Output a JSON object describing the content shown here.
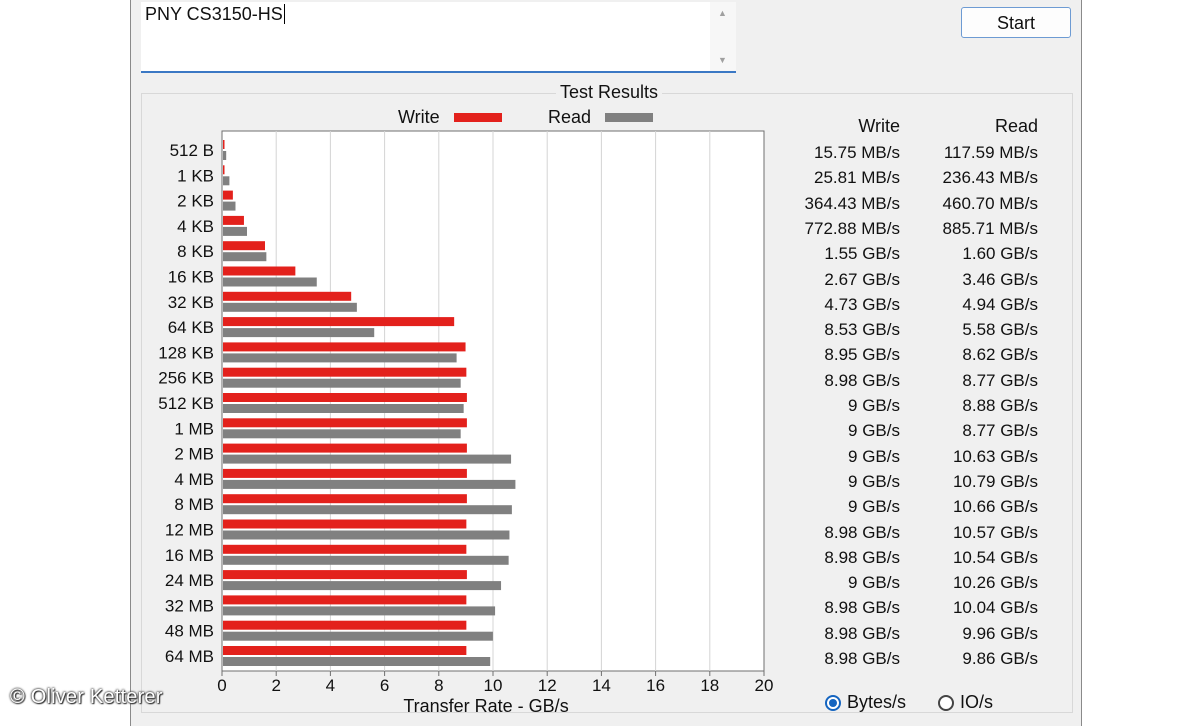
{
  "notes": {
    "text": "PNY CS3150-HS"
  },
  "start_button": {
    "label": "Start"
  },
  "results": {
    "title": "Test Results",
    "legend": {
      "write": "Write",
      "read": "Read"
    },
    "columns": {
      "write": "Write",
      "read": "Read"
    },
    "rows": [
      {
        "size": "512 B",
        "write": "15.75 MB/s",
        "read": "117.59 MB/s"
      },
      {
        "size": "1 KB",
        "write": "25.81 MB/s",
        "read": "236.43 MB/s"
      },
      {
        "size": "2 KB",
        "write": "364.43 MB/s",
        "read": "460.70 MB/s"
      },
      {
        "size": "4 KB",
        "write": "772.88 MB/s",
        "read": "885.71 MB/s"
      },
      {
        "size": "8 KB",
        "write": "1.55 GB/s",
        "read": "1.60 GB/s"
      },
      {
        "size": "16 KB",
        "write": "2.67 GB/s",
        "read": "3.46 GB/s"
      },
      {
        "size": "32 KB",
        "write": "4.73 GB/s",
        "read": "4.94 GB/s"
      },
      {
        "size": "64 KB",
        "write": "8.53 GB/s",
        "read": "5.58 GB/s"
      },
      {
        "size": "128 KB",
        "write": "8.95 GB/s",
        "read": "8.62 GB/s"
      },
      {
        "size": "256 KB",
        "write": "8.98 GB/s",
        "read": "8.77 GB/s"
      },
      {
        "size": "512 KB",
        "write": "9 GB/s",
        "read": "8.88 GB/s"
      },
      {
        "size": "1 MB",
        "write": "9 GB/s",
        "read": "8.77 GB/s"
      },
      {
        "size": "2 MB",
        "write": "9 GB/s",
        "read": "10.63 GB/s"
      },
      {
        "size": "4 MB",
        "write": "9 GB/s",
        "read": "10.79 GB/s"
      },
      {
        "size": "8 MB",
        "write": "9 GB/s",
        "read": "10.66 GB/s"
      },
      {
        "size": "12 MB",
        "write": "8.98 GB/s",
        "read": "10.57 GB/s"
      },
      {
        "size": "16 MB",
        "write": "8.98 GB/s",
        "read": "10.54 GB/s"
      },
      {
        "size": "24 MB",
        "write": "9 GB/s",
        "read": "10.26 GB/s"
      },
      {
        "size": "32 MB",
        "write": "8.98 GB/s",
        "read": "10.04 GB/s"
      },
      {
        "size": "48 MB",
        "write": "8.98 GB/s",
        "read": "9.96 GB/s"
      },
      {
        "size": "64 MB",
        "write": "8.98 GB/s",
        "read": "9.86 GB/s"
      }
    ]
  },
  "units": {
    "bytes_label": "Bytes/s",
    "io_label": "IO/s",
    "selected": "Bytes/s"
  },
  "watermark": "© Oliver Ketterer",
  "colors": {
    "write": "#e3211c",
    "read": "#808080",
    "accent": "#1565c0"
  },
  "chart_data": {
    "type": "bar",
    "orientation": "horizontal",
    "title": "Test Results",
    "xlabel": "Transfer Rate - GB/s",
    "ylabel": "",
    "xlim": [
      0,
      20
    ],
    "xticks": [
      0,
      2,
      4,
      6,
      8,
      10,
      12,
      14,
      16,
      18,
      20
    ],
    "grid": true,
    "legend_position": "top",
    "categories": [
      "512 B",
      "1 KB",
      "2 KB",
      "4 KB",
      "8 KB",
      "16 KB",
      "32 KB",
      "64 KB",
      "128 KB",
      "256 KB",
      "512 KB",
      "1 MB",
      "2 MB",
      "4 MB",
      "8 MB",
      "12 MB",
      "16 MB",
      "24 MB",
      "32 MB",
      "48 MB",
      "64 MB"
    ],
    "series": [
      {
        "name": "Write",
        "values": [
          0.01575,
          0.02581,
          0.36443,
          0.77288,
          1.55,
          2.67,
          4.73,
          8.53,
          8.95,
          8.98,
          9,
          9,
          9,
          9,
          9,
          8.98,
          8.98,
          9,
          8.98,
          8.98,
          8.98
        ]
      },
      {
        "name": "Read",
        "values": [
          0.11759,
          0.23643,
          0.4607,
          0.88571,
          1.6,
          3.46,
          4.94,
          5.58,
          8.62,
          8.77,
          8.88,
          8.77,
          10.63,
          10.79,
          10.66,
          10.57,
          10.54,
          10.26,
          10.04,
          9.96,
          9.86
        ]
      }
    ]
  }
}
